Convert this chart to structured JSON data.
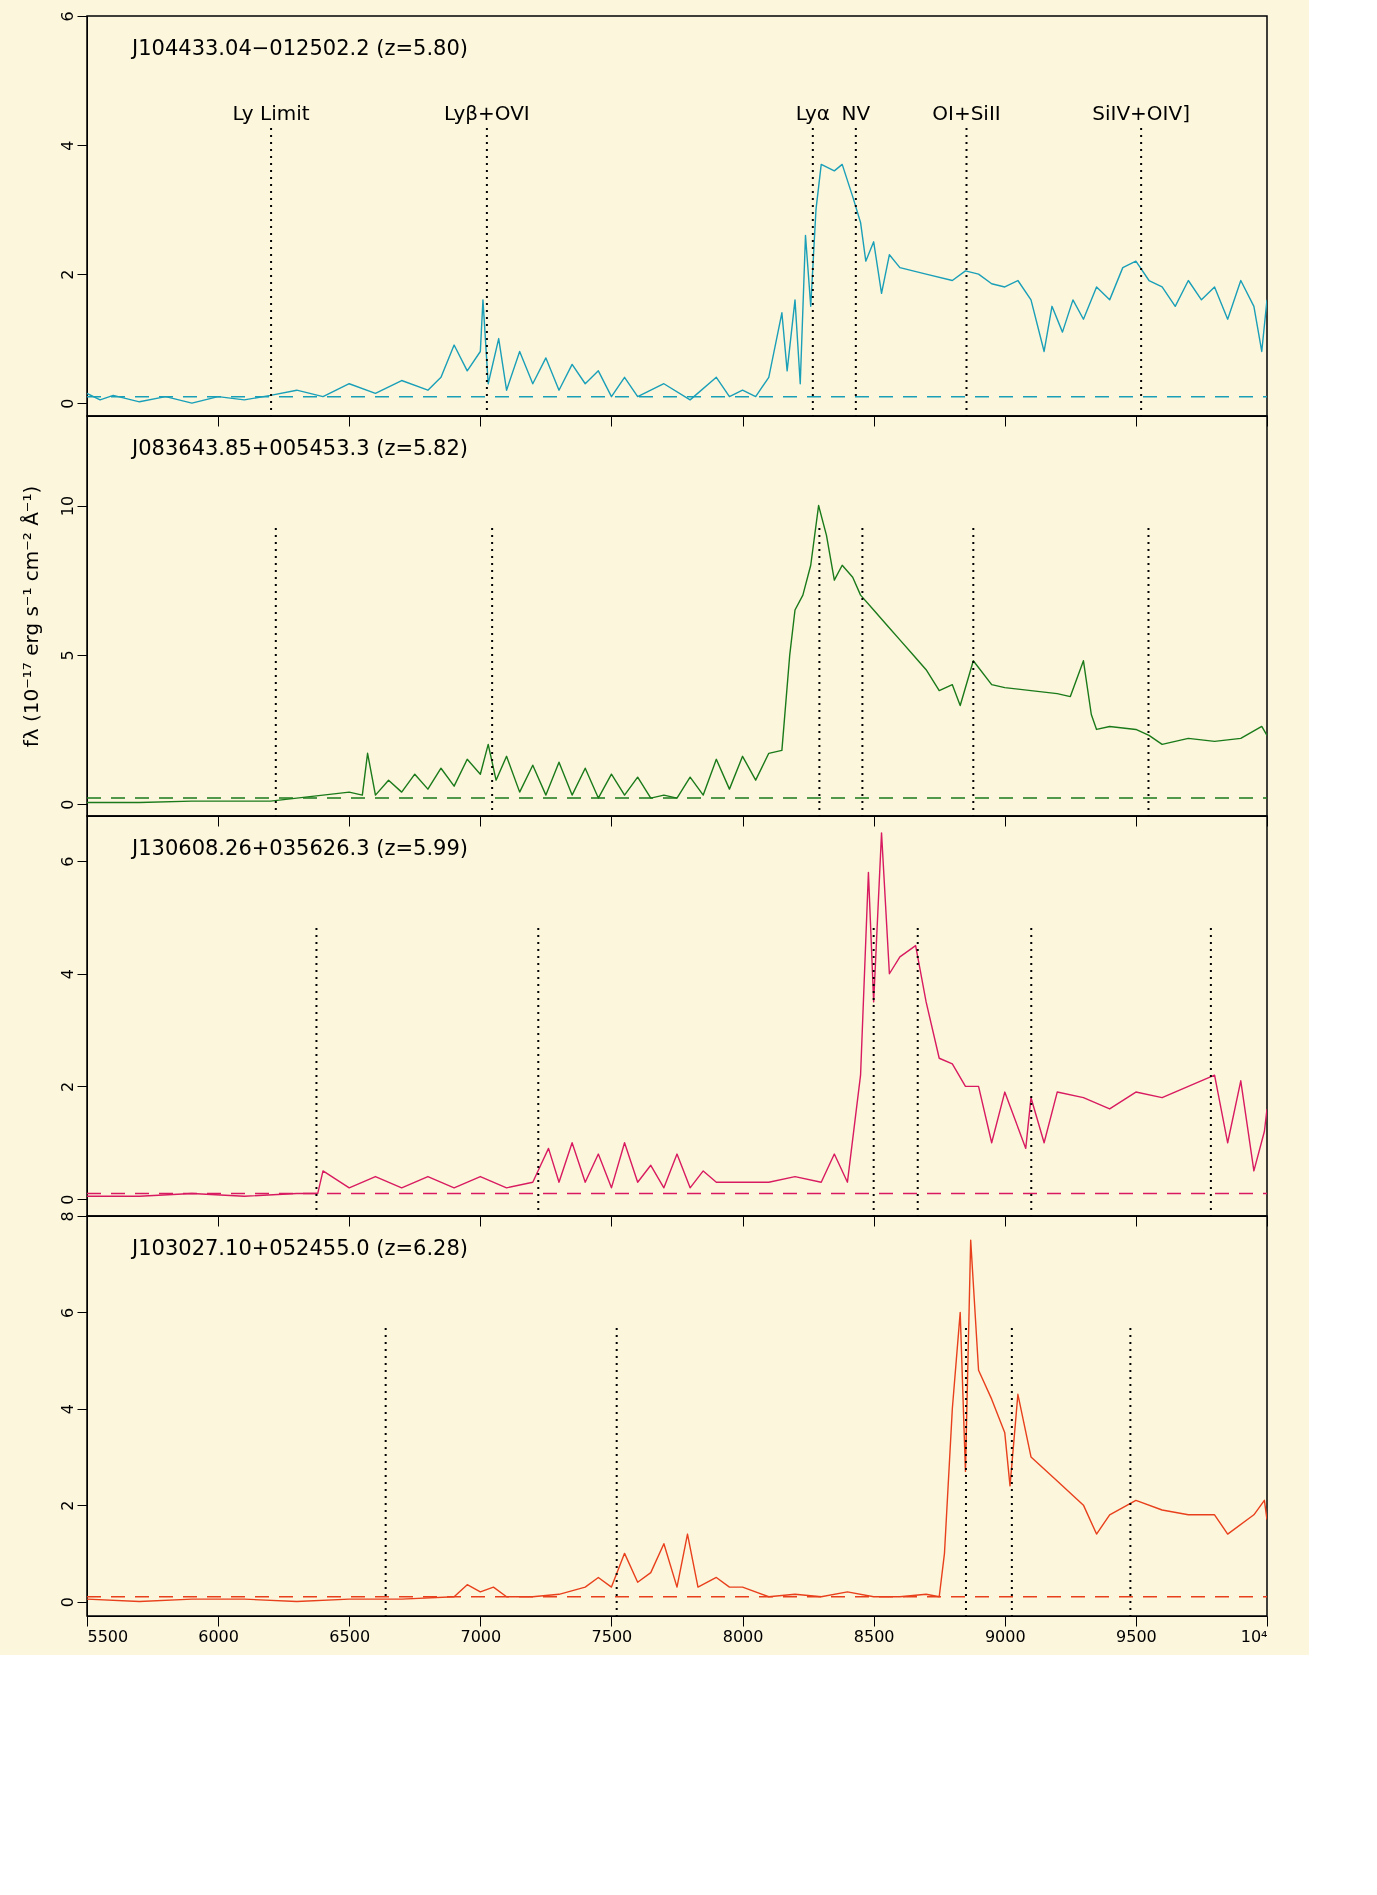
{
  "chart_data": [
    {
      "type": "line",
      "title": "J104433.04−012502.2 (z=5.80)",
      "tick_labels": "y",
      "grid": false,
      "line_style": "solid",
      "marker": "none",
      "xlim": [
        5500,
        10000
      ],
      "xticks": [
        5500,
        6000,
        6500,
        7000,
        7500,
        8000,
        8500,
        9000,
        9500,
        10000
      ],
      "ylim": [
        -0.2,
        6
      ],
      "yticks": [
        0,
        2,
        4,
        6
      ],
      "series": [
        {
          "color": "#1a9fb8",
          "x": [
            5500,
            5550,
            5600,
            5700,
            5800,
            5900,
            6000,
            6100,
            6200,
            6300,
            6400,
            6500,
            6600,
            6700,
            6800,
            6850,
            6900,
            6950,
            7000,
            7010,
            7030,
            7070,
            7100,
            7150,
            7200,
            7250,
            7300,
            7350,
            7400,
            7450,
            7500,
            7550,
            7600,
            7700,
            7800,
            7900,
            7950,
            8000,
            8050,
            8100,
            8150,
            8170,
            8200,
            8220,
            8240,
            8260,
            8280,
            8300,
            8350,
            8380,
            8420,
            8450,
            8470,
            8500,
            8530,
            8560,
            8600,
            8700,
            8800,
            8850,
            8900,
            8950,
            9000,
            9050,
            9100,
            9150,
            9180,
            9220,
            9260,
            9300,
            9350,
            9400,
            9450,
            9500,
            9550,
            9600,
            9650,
            9700,
            9750,
            9800,
            9850,
            9900,
            9950,
            9980,
            10000
          ],
          "values": [
            0.15,
            0.05,
            0.12,
            0.02,
            0.1,
            0.0,
            0.1,
            0.05,
            0.12,
            0.2,
            0.1,
            0.3,
            0.15,
            0.35,
            0.2,
            0.4,
            0.9,
            0.5,
            0.8,
            1.6,
            0.3,
            1.0,
            0.2,
            0.8,
            0.3,
            0.7,
            0.2,
            0.6,
            0.3,
            0.5,
            0.1,
            0.4,
            0.1,
            0.3,
            0.05,
            0.4,
            0.1,
            0.2,
            0.1,
            0.4,
            1.4,
            0.5,
            1.6,
            0.3,
            2.6,
            1.5,
            3.0,
            3.7,
            3.6,
            3.7,
            3.2,
            2.8,
            2.2,
            2.5,
            1.7,
            2.3,
            2.1,
            2.0,
            1.9,
            2.05,
            2.0,
            1.85,
            1.8,
            1.9,
            1.6,
            0.8,
            1.5,
            1.1,
            1.6,
            1.3,
            1.8,
            1.6,
            2.1,
            2.2,
            1.9,
            1.8,
            1.5,
            1.9,
            1.6,
            1.8,
            1.3,
            1.9,
            1.5,
            0.8,
            1.6
          ]
        }
      ],
      "ref_lines": [
        {
          "axis": "y",
          "value": 0.1,
          "line_style": "dashed",
          "color": "#1a9fb8"
        },
        {
          "axis": "x",
          "value": 6202,
          "label": "Ly Limit",
          "line_style": "dotted",
          "color": "#000000"
        },
        {
          "axis": "x",
          "value": 7025,
          "label": "Lyβ+OVI",
          "line_style": "dotted",
          "color": "#000000"
        },
        {
          "axis": "x",
          "value": 8268,
          "label": "Lyα",
          "line_style": "dotted",
          "color": "#000000"
        },
        {
          "axis": "x",
          "value": 8432,
          "label": "NV",
          "line_style": "dotted",
          "color": "#000000"
        },
        {
          "axis": "x",
          "value": 8854,
          "label": "OI+SiII",
          "line_style": "dotted",
          "color": "#000000"
        },
        {
          "axis": "x",
          "value": 9520,
          "label": "SiIV+OIV]",
          "line_style": "dotted",
          "color": "#000000"
        }
      ]
    },
    {
      "type": "line",
      "title": "J083643.85+005453.3 (z=5.82)",
      "ylabel": "fλ (10⁻¹⁷ erg s⁻¹ cm⁻² Å⁻¹)",
      "tick_labels": "y",
      "grid": false,
      "line_style": "solid",
      "marker": "none",
      "xlim": [
        5500,
        10000
      ],
      "xticks": [
        5500,
        6000,
        6500,
        7000,
        7500,
        8000,
        8500,
        9000,
        9500,
        10000
      ],
      "ylim": [
        -0.4,
        13
      ],
      "yticks": [
        0,
        5,
        10
      ],
      "series": [
        {
          "color": "#1a7a1a",
          "x": [
            5500,
            5700,
            5900,
            6100,
            6200,
            6300,
            6400,
            6500,
            6550,
            6570,
            6600,
            6650,
            6700,
            6750,
            6800,
            6850,
            6900,
            6950,
            7000,
            7030,
            7060,
            7100,
            7150,
            7200,
            7250,
            7300,
            7350,
            7400,
            7450,
            7500,
            7550,
            7600,
            7650,
            7700,
            7750,
            7800,
            7850,
            7900,
            7950,
            8000,
            8050,
            8100,
            8150,
            8180,
            8200,
            8230,
            8260,
            8290,
            8320,
            8350,
            8380,
            8420,
            8450,
            8500,
            8550,
            8600,
            8650,
            8700,
            8750,
            8800,
            8830,
            8880,
            8950,
            9000,
            9100,
            9200,
            9250,
            9300,
            9330,
            9350,
            9400,
            9500,
            9550,
            9600,
            9700,
            9800,
            9900,
            9980,
            10000
          ],
          "values": [
            0.05,
            0.05,
            0.1,
            0.1,
            0.1,
            0.2,
            0.3,
            0.4,
            0.3,
            1.7,
            0.3,
            0.8,
            0.4,
            1.0,
            0.5,
            1.2,
            0.6,
            1.5,
            1.0,
            2.0,
            0.8,
            1.6,
            0.4,
            1.3,
            0.3,
            1.4,
            0.3,
            1.2,
            0.2,
            1.0,
            0.3,
            0.9,
            0.2,
            0.3,
            0.2,
            0.9,
            0.3,
            1.5,
            0.5,
            1.6,
            0.8,
            1.7,
            1.8,
            5.0,
            6.5,
            7.0,
            8.0,
            10.0,
            9.0,
            7.5,
            8.0,
            7.6,
            7.0,
            6.5,
            6.0,
            5.5,
            5.0,
            4.5,
            3.8,
            4.0,
            3.3,
            4.8,
            4.0,
            3.9,
            3.8,
            3.7,
            3.6,
            4.8,
            3.0,
            2.5,
            2.6,
            2.5,
            2.3,
            2.0,
            2.2,
            2.1,
            2.2,
            2.6,
            2.3
          ]
        }
      ],
      "ref_lines": [
        {
          "axis": "y",
          "value": 0.2,
          "line_style": "dashed",
          "color": "#1a7a1a"
        },
        {
          "axis": "x",
          "value": 6220,
          "line_style": "dotted",
          "color": "#000000"
        },
        {
          "axis": "x",
          "value": 7045,
          "line_style": "dotted",
          "color": "#000000"
        },
        {
          "axis": "x",
          "value": 8293,
          "line_style": "dotted",
          "color": "#000000"
        },
        {
          "axis": "x",
          "value": 8457,
          "line_style": "dotted",
          "color": "#000000"
        },
        {
          "axis": "x",
          "value": 8880,
          "line_style": "dotted",
          "color": "#000000"
        },
        {
          "axis": "x",
          "value": 9548,
          "line_style": "dotted",
          "color": "#000000"
        }
      ]
    },
    {
      "type": "line",
      "title": "J130608.26+035626.3 (z=5.99)",
      "tick_labels": "y",
      "grid": false,
      "line_style": "solid",
      "marker": "none",
      "xlim": [
        5500,
        10000
      ],
      "xticks": [
        5500,
        6000,
        6500,
        7000,
        7500,
        8000,
        8500,
        9000,
        9500,
        10000
      ],
      "ylim": [
        -0.3,
        6.8
      ],
      "yticks": [
        0,
        2,
        4,
        6
      ],
      "series": [
        {
          "color": "#d81b60",
          "x": [
            5500,
            5700,
            5900,
            6100,
            6300,
            6380,
            6400,
            6500,
            6600,
            6700,
            6800,
            6900,
            7000,
            7100,
            7200,
            7230,
            7260,
            7300,
            7350,
            7400,
            7450,
            7500,
            7550,
            7600,
            7650,
            7700,
            7750,
            7800,
            7850,
            7900,
            8000,
            8100,
            8200,
            8300,
            8350,
            8400,
            8450,
            8480,
            8500,
            8530,
            8560,
            8600,
            8660,
            8700,
            8750,
            8800,
            8850,
            8900,
            8950,
            9000,
            9080,
            9100,
            9150,
            9200,
            9300,
            9400,
            9500,
            9600,
            9700,
            9800,
            9850,
            9900,
            9950,
            9990,
            10000
          ],
          "values": [
            0.05,
            0.05,
            0.1,
            0.05,
            0.1,
            0.1,
            0.5,
            0.2,
            0.4,
            0.2,
            0.4,
            0.2,
            0.4,
            0.2,
            0.3,
            0.6,
            0.9,
            0.3,
            1.0,
            0.3,
            0.8,
            0.2,
            1.0,
            0.3,
            0.6,
            0.2,
            0.8,
            0.2,
            0.5,
            0.3,
            0.3,
            0.3,
            0.4,
            0.3,
            0.8,
            0.3,
            2.2,
            5.8,
            3.5,
            6.5,
            4.0,
            4.3,
            4.5,
            3.5,
            2.5,
            2.4,
            2.0,
            2.0,
            1.0,
            1.9,
            0.9,
            1.8,
            1.0,
            1.9,
            1.8,
            1.6,
            1.9,
            1.8,
            2.0,
            2.2,
            1.0,
            2.1,
            0.5,
            1.2,
            1.6
          ]
        }
      ],
      "ref_lines": [
        {
          "axis": "y",
          "value": 0.1,
          "line_style": "dashed",
          "color": "#d81b60"
        },
        {
          "axis": "x",
          "value": 6375,
          "line_style": "dotted",
          "color": "#000000"
        },
        {
          "axis": "x",
          "value": 7221,
          "line_style": "dotted",
          "color": "#000000"
        },
        {
          "axis": "x",
          "value": 8500,
          "line_style": "dotted",
          "color": "#000000"
        },
        {
          "axis": "x",
          "value": 8668,
          "line_style": "dotted",
          "color": "#000000"
        },
        {
          "axis": "x",
          "value": 9101,
          "line_style": "dotted",
          "color": "#000000"
        },
        {
          "axis": "x",
          "value": 9786,
          "line_style": "dotted",
          "color": "#000000"
        }
      ]
    },
    {
      "type": "line",
      "title": "J103027.10+052455.0 (z=6.28)",
      "grid": false,
      "line_style": "solid",
      "marker": "none",
      "xlim": [
        5500,
        10000
      ],
      "xticks": [
        5500,
        6000,
        6500,
        7000,
        7500,
        8000,
        8500,
        9000,
        9500,
        {
          "value": 10000,
          "label": "10⁴"
        }
      ],
      "ylim": [
        -0.3,
        8
      ],
      "yticks": [
        0,
        2,
        4,
        6,
        8
      ],
      "series": [
        {
          "color": "#e8401c",
          "x": [
            5500,
            5700,
            5900,
            6100,
            6300,
            6500,
            6700,
            6900,
            6950,
            7000,
            7050,
            7100,
            7200,
            7300,
            7400,
            7450,
            7500,
            7550,
            7600,
            7650,
            7700,
            7750,
            7790,
            7830,
            7900,
            7950,
            8000,
            8100,
            8200,
            8300,
            8400,
            8500,
            8600,
            8700,
            8750,
            8770,
            8800,
            8830,
            8850,
            8870,
            8900,
            8950,
            9000,
            9020,
            9050,
            9100,
            9200,
            9300,
            9350,
            9400,
            9500,
            9600,
            9700,
            9800,
            9850,
            9950,
            9990,
            10000
          ],
          "values": [
            0.05,
            0.0,
            0.05,
            0.05,
            0.0,
            0.05,
            0.05,
            0.1,
            0.35,
            0.2,
            0.3,
            0.1,
            0.1,
            0.15,
            0.3,
            0.5,
            0.3,
            1.0,
            0.4,
            0.6,
            1.2,
            0.3,
            1.4,
            0.3,
            0.5,
            0.3,
            0.3,
            0.1,
            0.15,
            0.1,
            0.2,
            0.1,
            0.1,
            0.15,
            0.1,
            1.0,
            4.0,
            6.0,
            2.7,
            7.5,
            4.8,
            4.2,
            3.5,
            2.4,
            4.3,
            3.0,
            2.5,
            2.0,
            1.4,
            1.8,
            2.1,
            1.9,
            1.8,
            1.8,
            1.4,
            1.8,
            2.1,
            1.7
          ]
        }
      ],
      "ref_lines": [
        {
          "axis": "y",
          "value": 0.1,
          "line_style": "dashed",
          "color": "#e8401c"
        },
        {
          "axis": "x",
          "value": 6639,
          "line_style": "dotted",
          "color": "#000000"
        },
        {
          "axis": "x",
          "value": 7520,
          "line_style": "dotted",
          "color": "#000000"
        },
        {
          "axis": "x",
          "value": 8852,
          "line_style": "dotted",
          "color": "#000000"
        },
        {
          "axis": "x",
          "value": 9027,
          "line_style": "dotted",
          "color": "#000000"
        },
        {
          "axis": "x",
          "value": 9479,
          "line_style": "dotted",
          "color": "#000000"
        }
      ]
    }
  ]
}
